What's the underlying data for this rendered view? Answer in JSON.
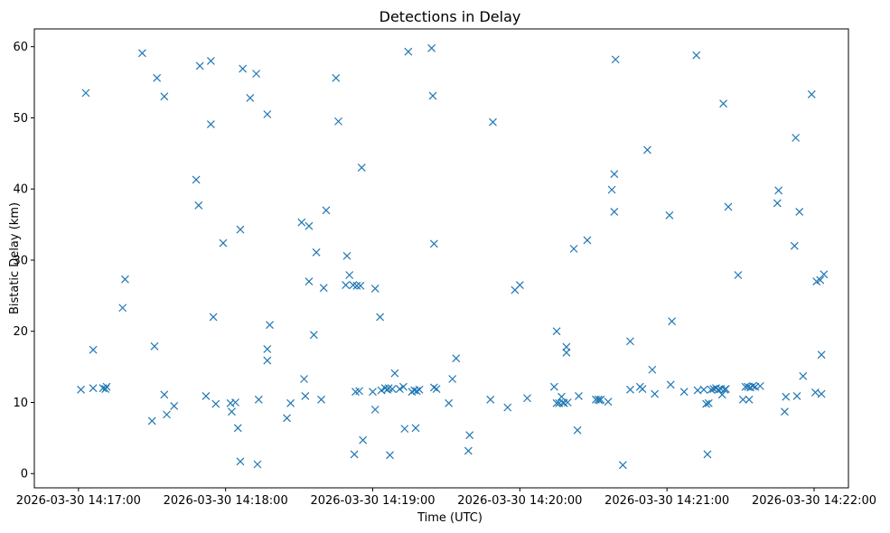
{
  "chart_data": {
    "type": "scatter",
    "title": "Detections in Delay",
    "xlabel": "Time (UTC)",
    "ylabel": "Bistatic Delay (km)",
    "marker": "x",
    "color": "#1f77b4",
    "xlim_seconds": [
      -18,
      314
    ],
    "ylim": [
      -2,
      62.5
    ],
    "x_tick_values": [
      0,
      60,
      120,
      180,
      240,
      300
    ],
    "x_tick_labels": [
      "2026-03-30 14:17:00",
      "2026-03-30 14:18:00",
      "2026-03-30 14:19:00",
      "2026-03-30 14:20:00",
      "2026-03-30 14:21:00",
      "2026-03-30 14:22:00"
    ],
    "y_ticks": [
      0,
      10,
      20,
      30,
      40,
      50,
      60
    ],
    "x_reference": "2026-03-30 14:17:00 (x values are seconds after this time)",
    "points": [
      [
        1.0,
        11.8
      ],
      [
        3.0,
        53.5
      ],
      [
        6.0,
        17.4
      ],
      [
        6.0,
        12.0
      ],
      [
        10.0,
        12.0
      ],
      [
        11.0,
        11.9
      ],
      [
        11.5,
        12.2
      ],
      [
        18.0,
        23.3
      ],
      [
        19.0,
        27.3
      ],
      [
        26.0,
        59.1
      ],
      [
        30.0,
        7.4
      ],
      [
        31.0,
        17.9
      ],
      [
        32.0,
        55.6
      ],
      [
        35.0,
        11.1
      ],
      [
        35.0,
        53.0
      ],
      [
        36.0,
        8.3
      ],
      [
        39.0,
        9.5
      ],
      [
        48.0,
        41.3
      ],
      [
        49.0,
        37.7
      ],
      [
        49.5,
        57.3
      ],
      [
        52.0,
        10.9
      ],
      [
        54.0,
        49.1
      ],
      [
        54.0,
        58.0
      ],
      [
        55.0,
        22.0
      ],
      [
        56.0,
        9.8
      ],
      [
        59.0,
        32.4
      ],
      [
        62.0,
        9.9
      ],
      [
        62.5,
        8.7
      ],
      [
        64.0,
        10.0
      ],
      [
        65.0,
        6.4
      ],
      [
        66.0,
        34.3
      ],
      [
        66.0,
        1.7
      ],
      [
        67.0,
        56.9
      ],
      [
        70.0,
        52.8
      ],
      [
        72.5,
        56.2
      ],
      [
        73.0,
        1.3
      ],
      [
        73.5,
        10.4
      ],
      [
        77.0,
        50.5
      ],
      [
        77.0,
        17.5
      ],
      [
        77.0,
        15.9
      ],
      [
        78.0,
        20.9
      ],
      [
        85.0,
        7.8
      ],
      [
        86.5,
        9.9
      ],
      [
        91.0,
        35.3
      ],
      [
        92.0,
        13.3
      ],
      [
        92.5,
        10.9
      ],
      [
        94.0,
        34.8
      ],
      [
        94.0,
        27.0
      ],
      [
        96.0,
        19.5
      ],
      [
        97.0,
        31.1
      ],
      [
        99.0,
        10.4
      ],
      [
        100.0,
        26.1
      ],
      [
        101.0,
        37.0
      ],
      [
        105.0,
        55.6
      ],
      [
        106.0,
        49.5
      ],
      [
        109.0,
        26.5
      ],
      [
        109.5,
        30.6
      ],
      [
        110.5,
        27.9
      ],
      [
        112.0,
        26.5
      ],
      [
        112.5,
        2.7
      ],
      [
        113.0,
        11.5
      ],
      [
        113.5,
        26.4
      ],
      [
        114.5,
        11.6
      ],
      [
        115.0,
        26.4
      ],
      [
        115.5,
        43.0
      ],
      [
        116.0,
        4.7
      ],
      [
        120.0,
        11.5
      ],
      [
        121.0,
        26.0
      ],
      [
        121.0,
        9.0
      ],
      [
        123.0,
        22.0
      ],
      [
        123.5,
        11.7
      ],
      [
        125.0,
        12.0
      ],
      [
        126.0,
        11.8
      ],
      [
        126.5,
        12.0
      ],
      [
        127.0,
        2.6
      ],
      [
        128.0,
        11.9
      ],
      [
        129.0,
        14.1
      ],
      [
        131.0,
        11.9
      ],
      [
        132.5,
        12.2
      ],
      [
        133.0,
        6.3
      ],
      [
        134.5,
        59.3
      ],
      [
        136.0,
        11.5
      ],
      [
        137.0,
        11.7
      ],
      [
        137.5,
        6.4
      ],
      [
        138.0,
        11.6
      ],
      [
        139.0,
        11.8
      ],
      [
        144.0,
        59.8
      ],
      [
        144.5,
        53.1
      ],
      [
        145.0,
        12.1
      ],
      [
        145.0,
        32.3
      ],
      [
        146.0,
        11.9
      ],
      [
        151.0,
        9.9
      ],
      [
        152.5,
        13.3
      ],
      [
        154.0,
        16.2
      ],
      [
        159.0,
        3.2
      ],
      [
        159.5,
        5.4
      ],
      [
        168.0,
        10.4
      ],
      [
        169.0,
        49.4
      ],
      [
        175.0,
        9.3
      ],
      [
        178.0,
        25.8
      ],
      [
        180.0,
        26.5
      ],
      [
        183.0,
        10.6
      ],
      [
        194.0,
        12.2
      ],
      [
        195.0,
        20.0
      ],
      [
        195.0,
        9.9
      ],
      [
        196.0,
        9.9
      ],
      [
        197.0,
        10.8
      ],
      [
        197.5,
        10.0
      ],
      [
        198.0,
        9.9
      ],
      [
        199.0,
        17.8
      ],
      [
        199.0,
        17.0
      ],
      [
        199.5,
        10.0
      ],
      [
        202.0,
        31.6
      ],
      [
        203.5,
        6.1
      ],
      [
        204.0,
        10.9
      ],
      [
        207.5,
        32.8
      ],
      [
        211.0,
        10.4
      ],
      [
        212.0,
        10.4
      ],
      [
        212.5,
        10.3
      ],
      [
        213.0,
        10.4
      ],
      [
        216.0,
        10.1
      ],
      [
        217.5,
        39.9
      ],
      [
        218.5,
        42.1
      ],
      [
        218.5,
        36.8
      ],
      [
        219.0,
        58.2
      ],
      [
        222.0,
        1.2
      ],
      [
        225.0,
        11.8
      ],
      [
        225.0,
        18.6
      ],
      [
        229.0,
        12.2
      ],
      [
        230.0,
        11.9
      ],
      [
        232.0,
        45.5
      ],
      [
        234.0,
        14.6
      ],
      [
        235.0,
        11.2
      ],
      [
        241.0,
        36.3
      ],
      [
        241.5,
        12.5
      ],
      [
        242.0,
        21.4
      ],
      [
        247.0,
        11.5
      ],
      [
        252.0,
        58.8
      ],
      [
        252.5,
        11.7
      ],
      [
        255.0,
        11.8
      ],
      [
        256.0,
        9.8
      ],
      [
        256.5,
        2.7
      ],
      [
        257.0,
        9.9
      ],
      [
        258.0,
        11.8
      ],
      [
        259.0,
        11.9
      ],
      [
        260.0,
        12.0
      ],
      [
        261.0,
        11.8
      ],
      [
        262.0,
        11.9
      ],
      [
        262.5,
        11.1
      ],
      [
        263.0,
        52.0
      ],
      [
        263.5,
        11.8
      ],
      [
        264.0,
        11.9
      ],
      [
        265.0,
        37.5
      ],
      [
        269.0,
        27.9
      ],
      [
        271.0,
        10.4
      ],
      [
        272.0,
        12.2
      ],
      [
        273.0,
        12.2
      ],
      [
        273.5,
        10.4
      ],
      [
        274.0,
        12.1
      ],
      [
        275.0,
        12.3
      ],
      [
        276.0,
        12.2
      ],
      [
        278.0,
        12.3
      ],
      [
        285.0,
        38.0
      ],
      [
        285.5,
        39.8
      ],
      [
        288.0,
        8.7
      ],
      [
        288.5,
        10.8
      ],
      [
        292.0,
        32.0
      ],
      [
        292.5,
        47.2
      ],
      [
        293.0,
        10.9
      ],
      [
        294.0,
        36.8
      ],
      [
        295.5,
        13.7
      ],
      [
        299.0,
        53.3
      ],
      [
        300.5,
        11.4
      ],
      [
        301.0,
        27.0
      ],
      [
        302.5,
        27.2
      ],
      [
        303.0,
        16.7
      ],
      [
        303.0,
        11.2
      ],
      [
        304.0,
        28.0
      ]
    ]
  }
}
